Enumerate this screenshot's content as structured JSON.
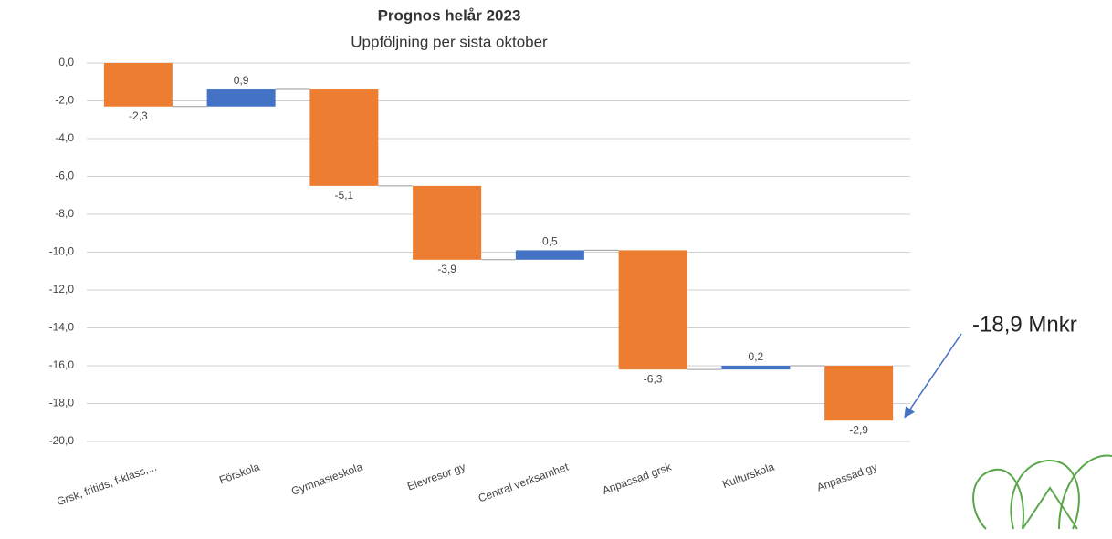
{
  "chart_data": {
    "type": "waterfall",
    "title": "Prognos helår 2023",
    "subtitle": "Uppföljning per sista oktober",
    "categories": [
      "Grsk, fritids, f-klass,...",
      "Förskola",
      "Gymnasieskola",
      "Elevresor gy",
      "Central verksamhet",
      "Anpassad grsk",
      "Kulturskola",
      "Anpassad gy"
    ],
    "values": [
      -2.3,
      0.9,
      -5.1,
      -3.9,
      0.5,
      -6.3,
      0.2,
      -2.9
    ],
    "value_labels": [
      "-2,3",
      "0,9",
      "-5,1",
      "-3,9",
      "0,5",
      "-6,3",
      "0,2",
      "-2,9"
    ],
    "increase_color": "#4472c4",
    "decrease_color": "#ed7d31",
    "ylim": [
      -20,
      0
    ],
    "yticks": [
      {
        "value": 0,
        "label": "0,0"
      },
      {
        "value": -2,
        "label": "-2,0"
      },
      {
        "value": -4,
        "label": "-4,0"
      },
      {
        "value": -6,
        "label": "-6,0"
      },
      {
        "value": -8,
        "label": "-8,0"
      },
      {
        "value": -10,
        "label": "-10,0"
      },
      {
        "value": -12,
        "label": "-12,0"
      },
      {
        "value": -14,
        "label": "-14,0"
      },
      {
        "value": -16,
        "label": "-16,0"
      },
      {
        "value": -18,
        "label": "-18,0"
      },
      {
        "value": -20,
        "label": "-20,0"
      }
    ],
    "grid": true,
    "annotation": "-18,9 Mnkr"
  }
}
